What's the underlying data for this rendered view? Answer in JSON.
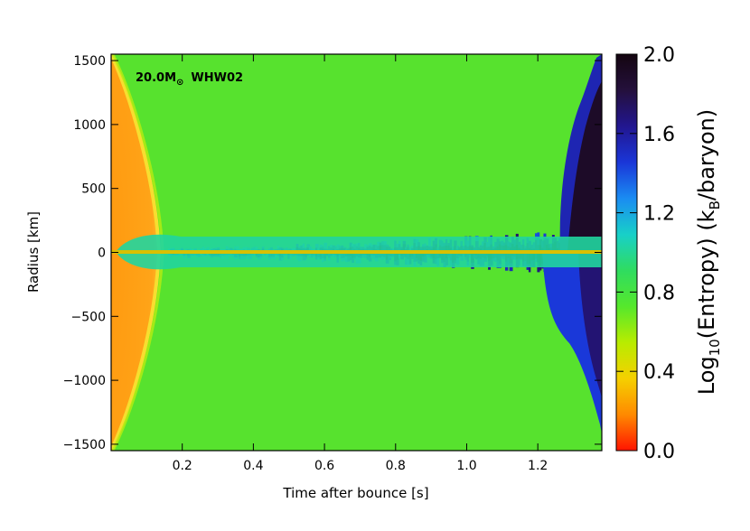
{
  "chart_data": {
    "type": "heatmap",
    "title": "",
    "xlabel": "Time after bounce [s]",
    "ylabel": "Radius [km]",
    "xlim": [
      0.0,
      1.38
    ],
    "ylim": [
      -1550,
      1550
    ],
    "xticks": [
      0.2,
      0.4,
      0.6,
      0.8,
      1.0,
      1.2
    ],
    "xtick_labels": [
      "0.2",
      "0.4",
      "0.6",
      "0.8",
      "1.0",
      "1.2"
    ],
    "yticks": [
      1500,
      1000,
      500,
      0,
      -500,
      -1000,
      -1500
    ],
    "ytick_labels": [
      "1500",
      "1000",
      "500",
      "0",
      "−500",
      "−1000",
      "−1500"
    ],
    "annotation": {
      "prefix": "20.0M",
      "subscript": "⊙",
      "suffix": "WHW02"
    },
    "colorbar": {
      "title_prefix": "Log",
      "title_sub": "10",
      "title_mid": "(Entropy)  (k",
      "title_sub2": "B",
      "title_suffix": "/baryon)",
      "range": [
        0.0,
        2.0
      ],
      "ticks": [
        0.0,
        0.4,
        0.8,
        1.2,
        1.6,
        2.0
      ],
      "tick_labels": [
        "0.0",
        "0.4",
        "0.8",
        "1.2",
        "1.6",
        "2.0"
      ],
      "colors": [
        "#ff1400",
        "#ff8a00",
        "#f5d000",
        "#b8ec00",
        "#55e82c",
        "#2fdc60",
        "#18d0c8",
        "#1a8cf2",
        "#1a36d8",
        "#221690",
        "#24103c",
        "#140510"
      ]
    },
    "background_value": 0.78,
    "features": {
      "inner_core_value": 0.32,
      "shock_front": "orange region at small radius and early time, bounded by a curved yellow front",
      "plumes": "high-entropy blue plumes near r=0 growing in amplitude with time, expanding strongly after 1.2 s"
    }
  }
}
